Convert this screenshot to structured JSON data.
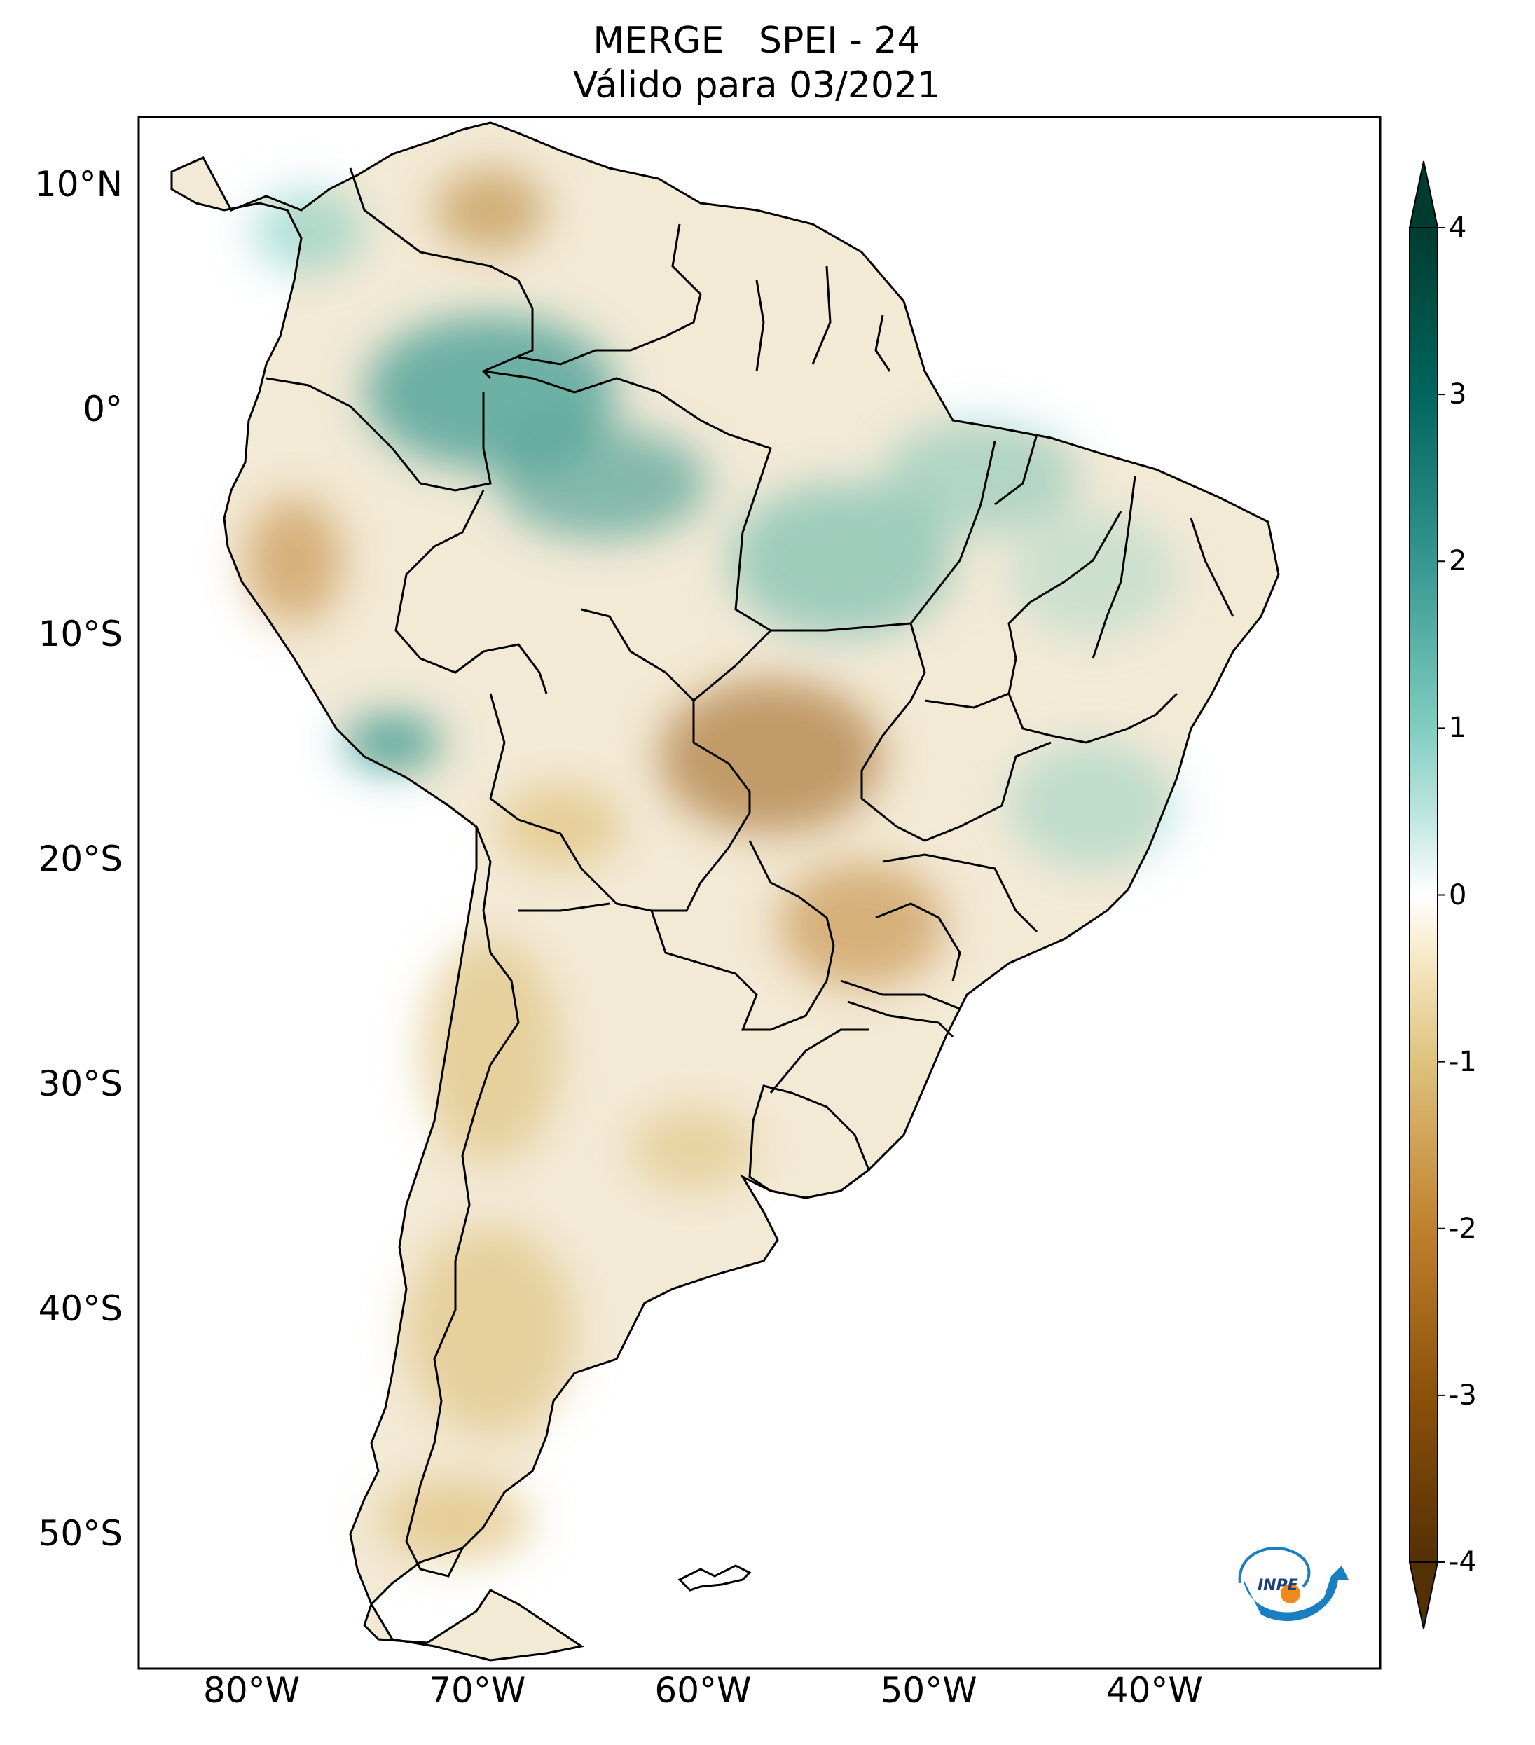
{
  "title": {
    "line1": "MERGE   SPEI - 24",
    "line2": "Válido para 03/2021"
  },
  "map": {
    "region": "South America",
    "extent": {
      "lon_min": -85,
      "lon_max": -30,
      "lat_min": -56,
      "lat_max": 13
    },
    "lat_ticks": [
      {
        "value": 10,
        "label": "10°N"
      },
      {
        "value": 0,
        "label": "0°"
      },
      {
        "value": -10,
        "label": "10°S"
      },
      {
        "value": -20,
        "label": "20°S"
      },
      {
        "value": -30,
        "label": "30°S"
      },
      {
        "value": -40,
        "label": "40°S"
      },
      {
        "value": -50,
        "label": "50°S"
      }
    ],
    "lon_ticks": [
      {
        "value": -80,
        "label": "80°W"
      },
      {
        "value": -70,
        "label": "70°W"
      },
      {
        "value": -60,
        "label": "60°W"
      },
      {
        "value": -50,
        "label": "50°W"
      },
      {
        "value": -40,
        "label": "40°W"
      }
    ],
    "border_color": "#000000",
    "ocean_color": "#ffffff"
  },
  "colorbar": {
    "min": -4,
    "max": 4,
    "ticks": [
      {
        "value": 4,
        "label": "4"
      },
      {
        "value": 3,
        "label": "3"
      },
      {
        "value": 2,
        "label": "2"
      },
      {
        "value": 1,
        "label": "1"
      },
      {
        "value": 0,
        "label": "0"
      },
      {
        "value": -1,
        "label": "-1"
      },
      {
        "value": -2,
        "label": "-2"
      },
      {
        "value": -3,
        "label": "-3"
      },
      {
        "value": -4,
        "label": "-4"
      }
    ],
    "colors": [
      "#543005",
      "#8c510a",
      "#bf812d",
      "#dfc27d",
      "#f6e8c3",
      "#ffffff",
      "#c7eae5",
      "#80cdc1",
      "#35978f",
      "#01665e",
      "#003c30"
    ]
  },
  "logo": {
    "text": "INPE",
    "icon": "inpe-logo-icon"
  }
}
